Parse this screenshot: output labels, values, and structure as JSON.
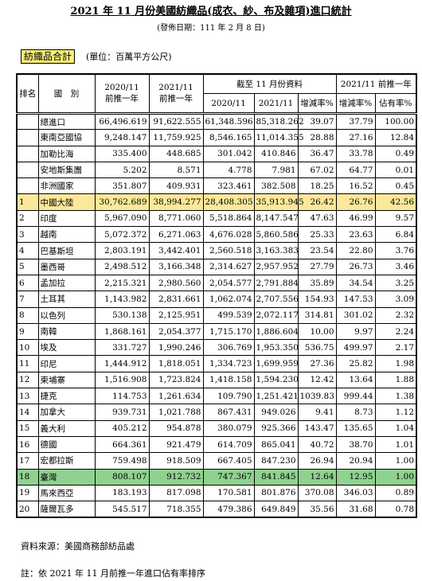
{
  "header": {
    "title": "2021 年 11 月份美國紡織品(成衣、紗、布及雜項)進口統計",
    "subtitle": "(發佈日期：111 年 2 月 8 日)",
    "section": "紡織品合計",
    "unit": "(單位：百萬平方公尺)"
  },
  "table": {
    "head": {
      "rank": "排名",
      "country": "國　別",
      "c1": [
        "2020/11",
        "前推一年"
      ],
      "c2": [
        "2021/11",
        "前推一年"
      ],
      "ytd": "截至 11 月份資料",
      "ytd_cols": [
        "2020/11",
        "2021/11",
        "增減率%"
      ],
      "last": "2021/11 前推一年",
      "last_cols": [
        "增減率%",
        "佔有率%"
      ]
    },
    "rows": [
      {
        "name": "總進口",
        "cells": [
          "66,496.619",
          "91,622.555",
          "61,348.596",
          "85,318.262",
          "39.07",
          "37.79",
          "100.00"
        ]
      },
      {
        "name": "東南亞國協",
        "cells": [
          "9,248.147",
          "11,759.925",
          "8,546.165",
          "11,014.355",
          "28.88",
          "27.16",
          "12.84"
        ]
      },
      {
        "name": "加勒比海",
        "cells": [
          "335.400",
          "448.685",
          "301.042",
          "410.846",
          "36.47",
          "33.78",
          "0.49"
        ]
      },
      {
        "name": "安地斯集團",
        "cells": [
          "5.202",
          "8.571",
          "4.778",
          "7.981",
          "67.02",
          "64.77",
          "0.01"
        ]
      },
      {
        "name": "非洲國家",
        "cells": [
          "351.807",
          "409.931",
          "323.461",
          "382.508",
          "18.25",
          "16.52",
          "0.45"
        ]
      },
      {
        "rank": "1",
        "name": "中國大陸",
        "highlight": "#fbe89a",
        "cells": [
          "30,762.689",
          "38,994.277",
          "28,408.305",
          "35,913.945",
          "26.42",
          "26.76",
          "42.56"
        ]
      },
      {
        "rank": "2",
        "name": "印度",
        "cells": [
          "5,967.090",
          "8,771.060",
          "5,518.864",
          "8,147.547",
          "47.63",
          "46.99",
          "9.57"
        ]
      },
      {
        "rank": "3",
        "name": "越南",
        "cells": [
          "5,072.372",
          "6,271.063",
          "4,676.028",
          "5,860.586",
          "25.33",
          "23.63",
          "6.84"
        ]
      },
      {
        "rank": "4",
        "name": "巴基斯坦",
        "cells": [
          "2,803.191",
          "3,442.401",
          "2,560.518",
          "3,163.383",
          "23.54",
          "22.80",
          "3.76"
        ]
      },
      {
        "rank": "5",
        "name": "墨西哥",
        "cells": [
          "2,498.512",
          "3,166.348",
          "2,314.627",
          "2,957.952",
          "27.79",
          "26.73",
          "3.46"
        ]
      },
      {
        "rank": "6",
        "name": "孟加拉",
        "cells": [
          "2,215.321",
          "2,980.560",
          "2,054.577",
          "2,791.884",
          "35.89",
          "34.54",
          "3.25"
        ]
      },
      {
        "rank": "7",
        "name": "土耳其",
        "cells": [
          "1,143.982",
          "2,831.661",
          "1,062.074",
          "2,707.556",
          "154.93",
          "147.53",
          "3.09"
        ]
      },
      {
        "rank": "8",
        "name": "以色列",
        "cells": [
          "530.138",
          "2,125.951",
          "499.539",
          "2,072.117",
          "314.81",
          "301.02",
          "2.32"
        ]
      },
      {
        "rank": "9",
        "name": "南韓",
        "cells": [
          "1,868.161",
          "2,054.377",
          "1,715.170",
          "1,886.604",
          "10.00",
          "9.97",
          "2.24"
        ]
      },
      {
        "rank": "10",
        "name": "埃及",
        "cells": [
          "331.727",
          "1,990.246",
          "306.769",
          "1,953.350",
          "536.75",
          "499.97",
          "2.17"
        ]
      },
      {
        "rank": "11",
        "name": "印尼",
        "cells": [
          "1,444.912",
          "1,818.051",
          "1,334.723",
          "1,699.959",
          "27.36",
          "25.82",
          "1.98"
        ]
      },
      {
        "rank": "12",
        "name": "柬埔寨",
        "cells": [
          "1,516.908",
          "1,723.824",
          "1,418.158",
          "1,594.230",
          "12.42",
          "13.64",
          "1.88"
        ]
      },
      {
        "rank": "13",
        "name": "捷克",
        "cells": [
          "114.753",
          "1,261.634",
          "109.790",
          "1,251.421",
          "1039.83",
          "999.44",
          "1.38"
        ]
      },
      {
        "rank": "14",
        "name": "加拿大",
        "cells": [
          "939.731",
          "1,021.788",
          "867.431",
          "949.026",
          "9.41",
          "8.73",
          "1.12"
        ]
      },
      {
        "rank": "15",
        "name": "義大利",
        "cells": [
          "405.212",
          "954.878",
          "380.079",
          "925.366",
          "143.47",
          "135.65",
          "1.04"
        ]
      },
      {
        "rank": "16",
        "name": "德國",
        "cells": [
          "664.361",
          "921.479",
          "614.709",
          "865.041",
          "40.72",
          "38.70",
          "1.01"
        ]
      },
      {
        "rank": "17",
        "name": "宏都拉斯",
        "cells": [
          "759.498",
          "918.509",
          "667.405",
          "847.230",
          "26.94",
          "20.94",
          "1.00"
        ]
      },
      {
        "rank": "18",
        "name": "臺灣",
        "highlight": "#8fd18f",
        "cells": [
          "808.107",
          "912.732",
          "747.367",
          "841.845",
          "12.64",
          "12.95",
          "1.00"
        ]
      },
      {
        "rank": "19",
        "name": "馬來西亞",
        "cells": [
          "183.193",
          "817.098",
          "170.581",
          "801.876",
          "370.08",
          "346.03",
          "0.89"
        ]
      },
      {
        "rank": "20",
        "name": "薩爾瓦多",
        "cells": [
          "545.517",
          "718.355",
          "479.386",
          "649.849",
          "35.56",
          "31.68",
          "0.78"
        ]
      }
    ]
  },
  "footer": {
    "source": "資料來源：美國商務部紡品處",
    "note": "註：依 2021 年 11 月前推一年進口佔有率排序"
  }
}
